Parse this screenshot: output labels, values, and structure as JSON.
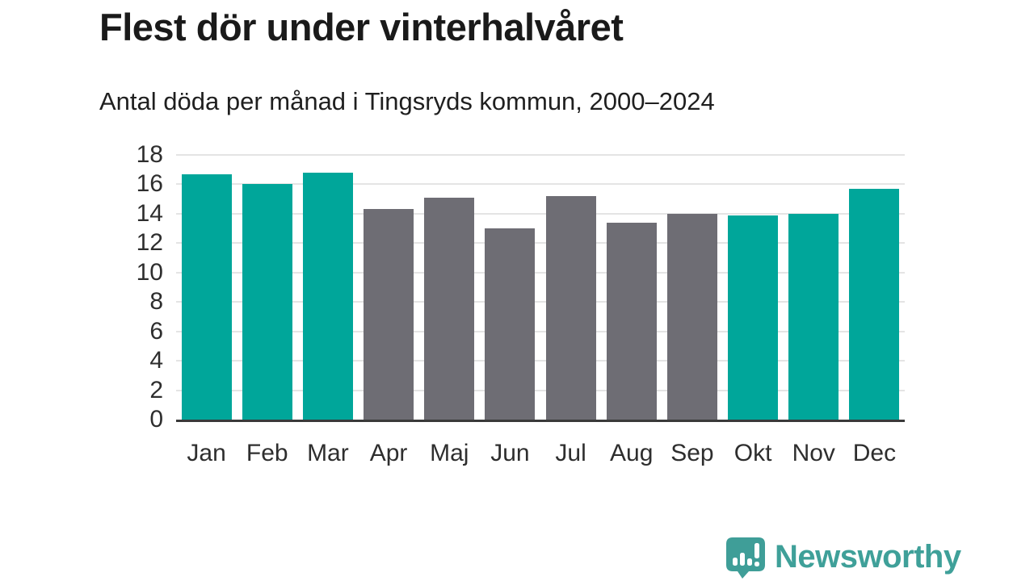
{
  "page": {
    "background": "#ffffff"
  },
  "header": {
    "title": "Flest dör under vinterhalvåret",
    "subtitle": "Antal döda per månad i Tingsryds kommun, 2000–2024"
  },
  "chart_data": {
    "type": "bar",
    "title": "Flest dör under vinterhalvåret",
    "subtitle": "Antal döda per månad i Tingsryds kommun, 2000–2024",
    "categories": [
      "Jan",
      "Feb",
      "Mar",
      "Apr",
      "Maj",
      "Jun",
      "Jul",
      "Aug",
      "Sep",
      "Okt",
      "Nov",
      "Dec"
    ],
    "values": [
      16.7,
      16.0,
      16.8,
      14.3,
      15.1,
      13.0,
      15.2,
      13.4,
      14.0,
      13.9,
      14.0,
      15.7
    ],
    "bar_colors": [
      "teal",
      "teal",
      "teal",
      "gray",
      "gray",
      "gray",
      "gray",
      "gray",
      "gray",
      "teal",
      "teal",
      "teal"
    ],
    "palette": {
      "teal": "#00a69a",
      "gray": "#6e6d74"
    },
    "xlabel": "",
    "ylabel": "",
    "ylim": [
      0,
      18
    ],
    "yticks": [
      0,
      2,
      4,
      6,
      8,
      10,
      12,
      14,
      16,
      18
    ],
    "grid": true,
    "legend": false,
    "gridline_color": "#e4e4e4",
    "axis_line_color": "#3a3a3a"
  },
  "footer": {
    "brand": "Newsworthy",
    "brand_color": "#3fa099"
  }
}
